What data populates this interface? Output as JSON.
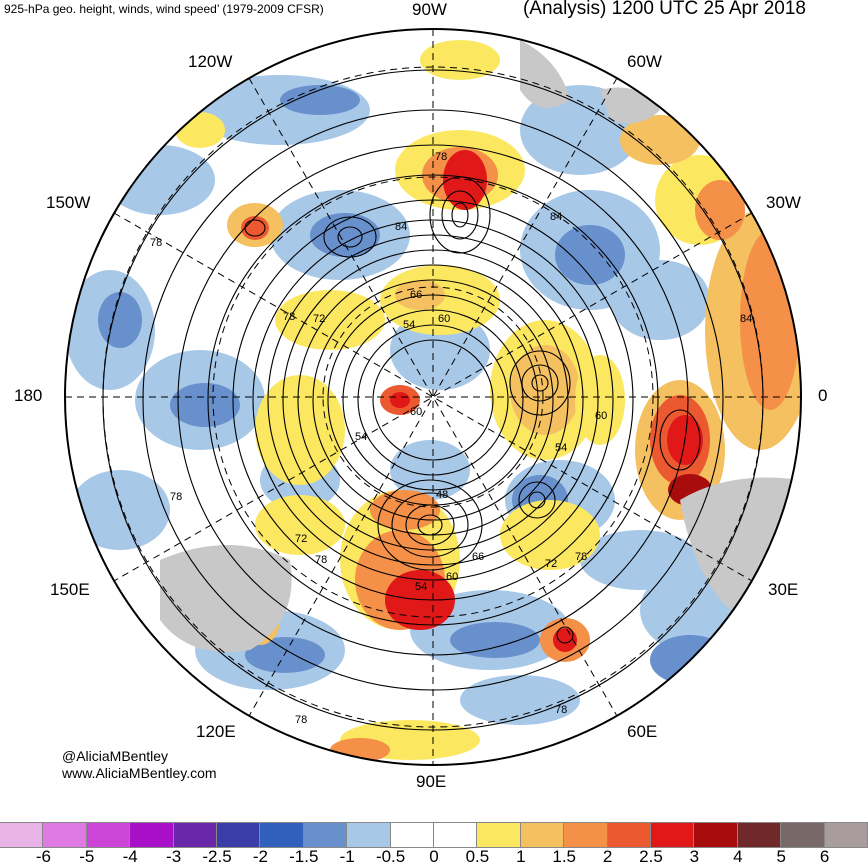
{
  "header": {
    "title_left": "925-hPa geo. height, winds, wind speed’ (1979-2009 CFSR)",
    "title_right": "(Analysis) 1200 UTC 25 Apr 2018"
  },
  "longitude_labels": [
    "90W",
    "60W",
    "30W",
    "0",
    "30E",
    "60E",
    "90E",
    "120E",
    "150E",
    "180",
    "150W",
    "120W"
  ],
  "height_contour_labels": [
    "78",
    "84",
    "78",
    "72",
    "66",
    "54",
    "60",
    "60",
    "48",
    "54",
    "60",
    "66",
    "72",
    "78",
    "54",
    "60",
    "84",
    "78",
    "78",
    "78",
    "78"
  ],
  "credit": {
    "handle": "@AliciaMBentley",
    "website": "www.AliciaMBentley.com"
  },
  "colorbar": {
    "labels": [
      "-6",
      "-5",
      "-4",
      "-3",
      "-2.5",
      "-2",
      "-1.5",
      "-1",
      "-0.5",
      "0",
      "0.5",
      "1",
      "1.5",
      "2",
      "2.5",
      "3",
      "4",
      "5",
      "6"
    ],
    "colors": [
      "#e8b4e8",
      "#e079e4",
      "#cc44d8",
      "#a810c8",
      "#6a28a8",
      "#3c3ca8",
      "#3060bc",
      "#6890cc",
      "#a8c8e8",
      "#ffffff",
      "#ffffff",
      "#fce860",
      "#f4c060",
      "#f49048",
      "#ec5830",
      "#e01818",
      "#a80c0c",
      "#702828",
      "#786868",
      "#a89c9c"
    ]
  },
  "map": {
    "land_color": "#c8c8c8",
    "positive_anomaly_colors": [
      "#fce860",
      "#f4c060",
      "#f49048",
      "#ec5830",
      "#e01818"
    ],
    "negative_anomaly_colors": [
      "#a8c8e8",
      "#6890cc",
      "#3060bc"
    ]
  }
}
